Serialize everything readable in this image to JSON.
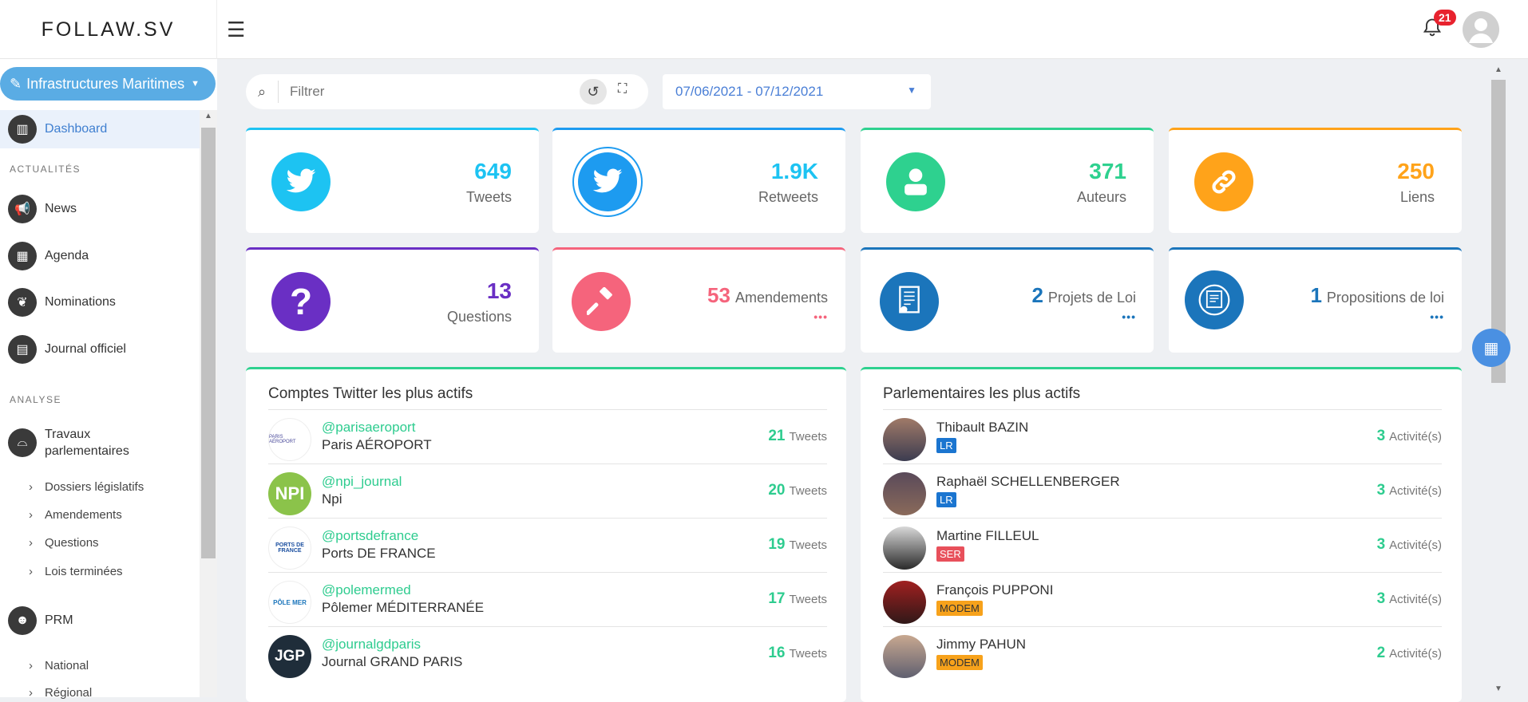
{
  "app": {
    "logo": "FOLLAW.SV",
    "notifications": "21"
  },
  "sidebar": {
    "project": "Infrastructures Maritimes",
    "dashboard": "Dashboard",
    "section_actualites": "ACTUALITÉS",
    "news": "News",
    "agenda": "Agenda",
    "nominations": "Nominations",
    "journal": "Journal officiel",
    "section_analyse": "ANALYSE",
    "travaux": "Travaux parlementaires",
    "sub": [
      "Dossiers législatifs",
      "Amendements",
      "Questions",
      "Lois terminées"
    ],
    "prm": "PRM",
    "prm_sub": [
      "National",
      "Régional"
    ]
  },
  "filter": {
    "placeholder": "Filtrer",
    "date_range": "07/06/2021 - 07/12/2021"
  },
  "stats": {
    "tweets": {
      "value": "649",
      "label": "Tweets"
    },
    "retweets": {
      "value": "1.9K",
      "label": "Retweets"
    },
    "auteurs": {
      "value": "371",
      "label": "Auteurs"
    },
    "liens": {
      "value": "250",
      "label": "Liens"
    },
    "questions": {
      "value": "13",
      "label": "Questions"
    },
    "amendements": {
      "value": "53",
      "label": "Amendements"
    },
    "projets": {
      "value": "2",
      "label": "Projets de Loi"
    },
    "propositions": {
      "value": "1",
      "label": "Propositions de loi"
    },
    "more": "•••"
  },
  "twitter_panel": {
    "title": "Comptes Twitter les plus actifs",
    "unit": "Tweets",
    "rows": [
      {
        "handle": "@parisaeroport",
        "name": "Paris AÉROPORT",
        "count": "21"
      },
      {
        "handle": "@npi_journal",
        "name": "Npi",
        "count": "20"
      },
      {
        "handle": "@portsdefrance",
        "name": "Ports DE FRANCE",
        "count": "19"
      },
      {
        "handle": "@polemermed",
        "name": "Pôlemer MÉDITERRANÉE",
        "count": "17"
      },
      {
        "handle": "@journalgdparis",
        "name": "Journal GRAND PARIS",
        "count": "16"
      }
    ],
    "logos": [
      "PARIS AÉROPORT",
      "NPI",
      "PORTS DE FRANCE",
      "PÔLE MER",
      "JGP"
    ]
  },
  "parl_panel": {
    "title": "Parlementaires les plus actifs",
    "unit": "Activité(s)",
    "rows": [
      {
        "name": "Thibault BAZIN",
        "party": "LR",
        "count": "3"
      },
      {
        "name": "Raphaël SCHELLENBERGER",
        "party": "LR",
        "count": "3"
      },
      {
        "name": "Martine FILLEUL",
        "party": "SER",
        "count": "3"
      },
      {
        "name": "François PUPPONI",
        "party": "MODEM",
        "count": "3"
      },
      {
        "name": "Jimmy PAHUN",
        "party": "MODEM",
        "count": "2"
      }
    ]
  },
  "colors": {
    "blue": "#1da1f2",
    "green": "#2ed18f",
    "orange": "#ffa31a",
    "purple": "#6a2fc4",
    "pink": "#f5647c",
    "navy": "#1b75bb",
    "lr": "#1b75d0",
    "ser": "#e8505b",
    "modem": "#f7a21b"
  }
}
